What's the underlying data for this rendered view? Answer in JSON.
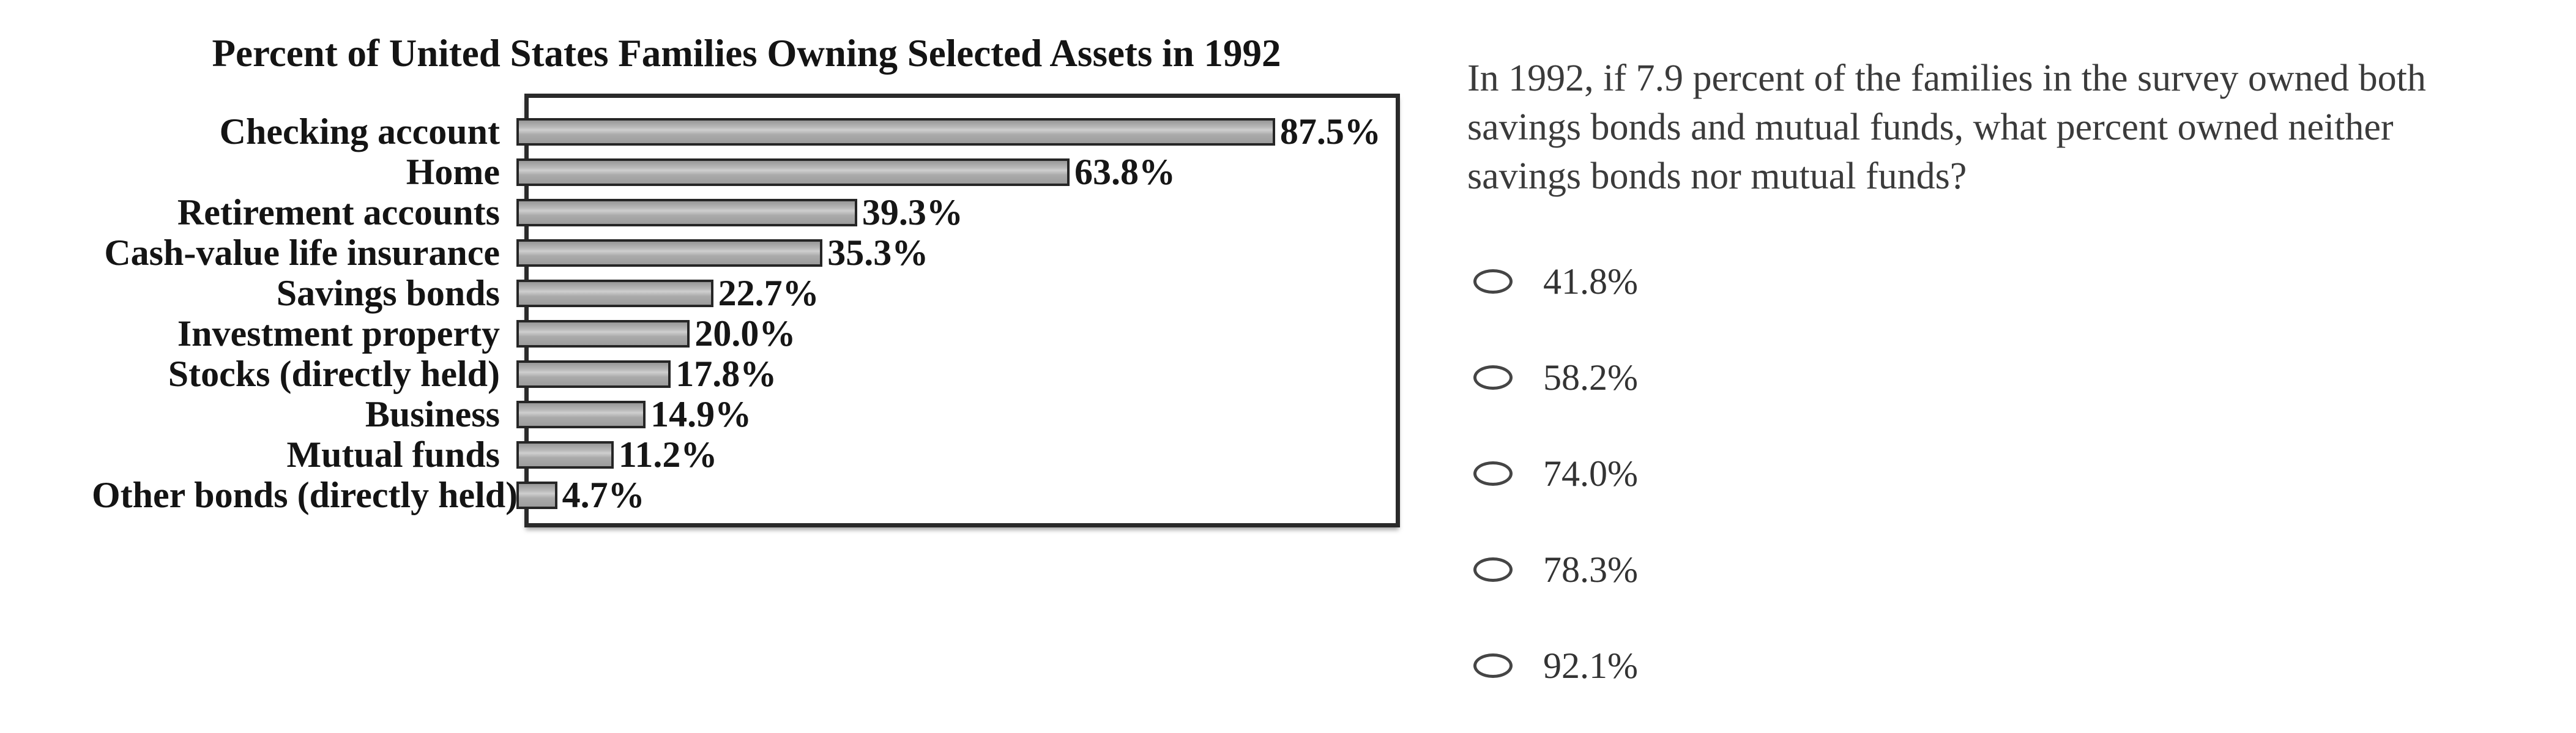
{
  "page": {
    "background": "#ffffff"
  },
  "chart": {
    "title": "Percent of United States Families Owning Selected Assets in 1992",
    "bars": [
      {
        "category": "Checking account",
        "value": 87.5,
        "value_label": "87.5%"
      },
      {
        "category": "Home",
        "value": 63.8,
        "value_label": "63.8%"
      },
      {
        "category": "Retirement accounts",
        "value": 39.3,
        "value_label": "39.3%"
      },
      {
        "category": "Cash-value life insurance",
        "value": 35.3,
        "value_label": "35.3%"
      },
      {
        "category": "Savings bonds",
        "value": 22.7,
        "value_label": "22.7%"
      },
      {
        "category": "Investment property",
        "value": 20.0,
        "value_label": "20.0%"
      },
      {
        "category": "Stocks (directly held)",
        "value": 17.8,
        "value_label": "17.8%"
      },
      {
        "category": "Business",
        "value": 14.9,
        "value_label": "14.9%"
      },
      {
        "category": "Mutual funds",
        "value": 11.2,
        "value_label": "11.2%"
      },
      {
        "category": "Other bonds (directly held)",
        "value": 4.7,
        "value_label": "4.7%"
      }
    ],
    "colors": {
      "bar_fill": "#b5b5b5",
      "bar_border": "#262626",
      "frame_border": "#2a2a2a",
      "text": "#141414"
    }
  },
  "chart_data": {
    "type": "bar",
    "orientation": "horizontal",
    "title": "Percent of United States Families Owning Selected Assets in 1992",
    "categories": [
      "Checking account",
      "Home",
      "Retirement accounts",
      "Cash-value life insurance",
      "Savings bonds",
      "Investment property",
      "Stocks (directly held)",
      "Business",
      "Mutual funds",
      "Other bonds (directly held)"
    ],
    "values": [
      87.5,
      63.8,
      39.3,
      35.3,
      22.7,
      20.0,
      17.8,
      14.9,
      11.2,
      4.7
    ],
    "value_labels": [
      "87.5%",
      "63.8%",
      "39.3%",
      "35.3%",
      "22.7%",
      "20.0%",
      "17.8%",
      "14.9%",
      "11.2%",
      "4.7%"
    ],
    "xlabel": "",
    "ylabel": "",
    "xlim": [
      0,
      100
    ],
    "grid": false,
    "legend": false,
    "data_labels_position": "end-of-bar"
  },
  "question": {
    "full_text": "In 1992, if 7.9 percent of the families in the survey owned both savings bonds and mutual funds, what percent owned neither savings bonds nor mutual funds?",
    "lines": [
      "In 1992, if 7.9 percent of the families in the survey owned both",
      "savings bonds and mutual funds, what percent owned neither",
      "savings bonds nor mutual funds?"
    ]
  },
  "options": [
    {
      "label": "41.8%",
      "selected": false
    },
    {
      "label": "58.2%",
      "selected": false
    },
    {
      "label": "74.0%",
      "selected": false
    },
    {
      "label": "78.3%",
      "selected": false
    },
    {
      "label": "92.1%",
      "selected": false
    }
  ]
}
